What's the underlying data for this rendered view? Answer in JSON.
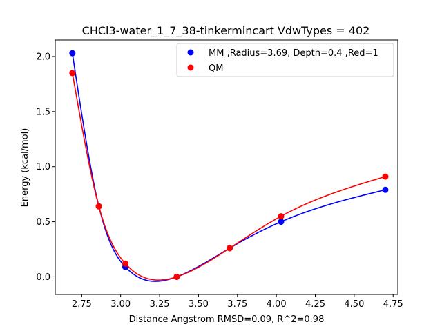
{
  "chart_data": {
    "type": "line",
    "title": "CHCl3-water_1_7_38-tinkermincart VdwTypes = 402",
    "xlabel": "Distance Angstrom RMSD=0.09, R^2=0.98",
    "ylabel": "Energy (kcal/mol)",
    "xlim": [
      2.58,
      4.78
    ],
    "ylim": [
      -0.16,
      2.15
    ],
    "x_ticks": [
      2.75,
      3.0,
      3.25,
      3.5,
      3.75,
      4.0,
      4.25,
      4.5,
      4.75
    ],
    "x_tick_labels": [
      "2.75",
      "3.00",
      "3.25",
      "3.50",
      "3.75",
      "4.00",
      "4.25",
      "4.50",
      "4.75"
    ],
    "y_ticks": [
      0.0,
      0.5,
      1.0,
      1.5,
      2.0
    ],
    "y_tick_labels": [
      "0.0",
      "0.5",
      "1.0",
      "1.5",
      "2.0"
    ],
    "grid": false,
    "legend_position": "top-right",
    "series": [
      {
        "name": "MM ,Radius=3.69, Depth=0.4 ,Red=1",
        "color": "#0000ff",
        "x": [
          2.69,
          2.86,
          3.03,
          3.36,
          3.7,
          4.03,
          4.7
        ],
        "y": [
          2.03,
          0.64,
          0.09,
          0.0,
          0.26,
          0.5,
          0.79
        ]
      },
      {
        "name": "QM",
        "color": "#ff0000",
        "x": [
          2.69,
          2.86,
          3.03,
          3.36,
          3.7,
          4.03,
          4.7
        ],
        "y": [
          1.85,
          0.64,
          0.12,
          0.0,
          0.26,
          0.55,
          0.91
        ]
      }
    ]
  }
}
